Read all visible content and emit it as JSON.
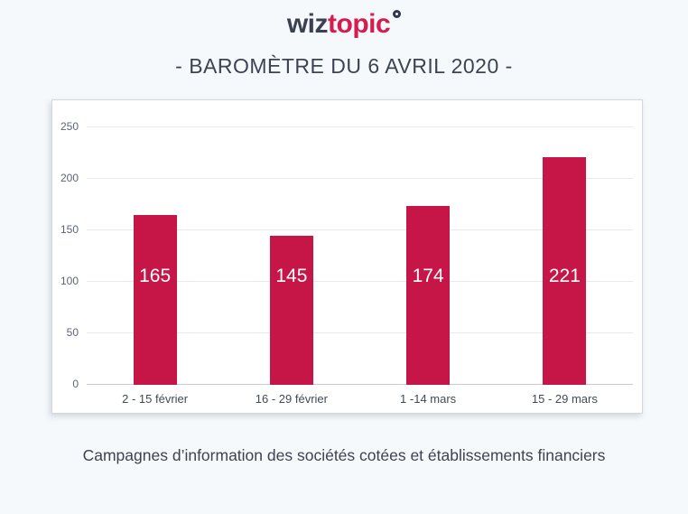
{
  "logo": {
    "part1": "wiz",
    "part2": "topic",
    "full_name": "wiztopic"
  },
  "header": {
    "title": "- BAROMÈTRE DU 6 AVRIL 2020 -"
  },
  "caption": "Campagnes d’information des sociétés cotées et établissements financiers",
  "colors": {
    "background": "#f5f9fc",
    "card_background": "#ffffff",
    "card_border": "#d4d8dd",
    "bar": "#c61647",
    "bar_value_text": "#ffffff",
    "logo_dark": "#3b4150",
    "logo_red": "#d61c4e",
    "title_text": "#3c4454",
    "grid": "#e7e9ec",
    "baseline": "#c8ccd1"
  },
  "chart_data": {
    "type": "bar",
    "title": "",
    "xlabel": "",
    "ylabel": "",
    "categories": [
      "2 - 15 février",
      "16 - 29 février",
      "1 -14 mars",
      "15 - 29 mars"
    ],
    "values": [
      165,
      145,
      174,
      221
    ],
    "bar_labels": [
      "165",
      "145",
      "174",
      "221"
    ],
    "y_ticks": [
      0,
      50,
      100,
      150,
      200,
      250
    ],
    "ylim": [
      0,
      250
    ],
    "grid": true,
    "legend": false,
    "bar_color": "#c61647"
  }
}
